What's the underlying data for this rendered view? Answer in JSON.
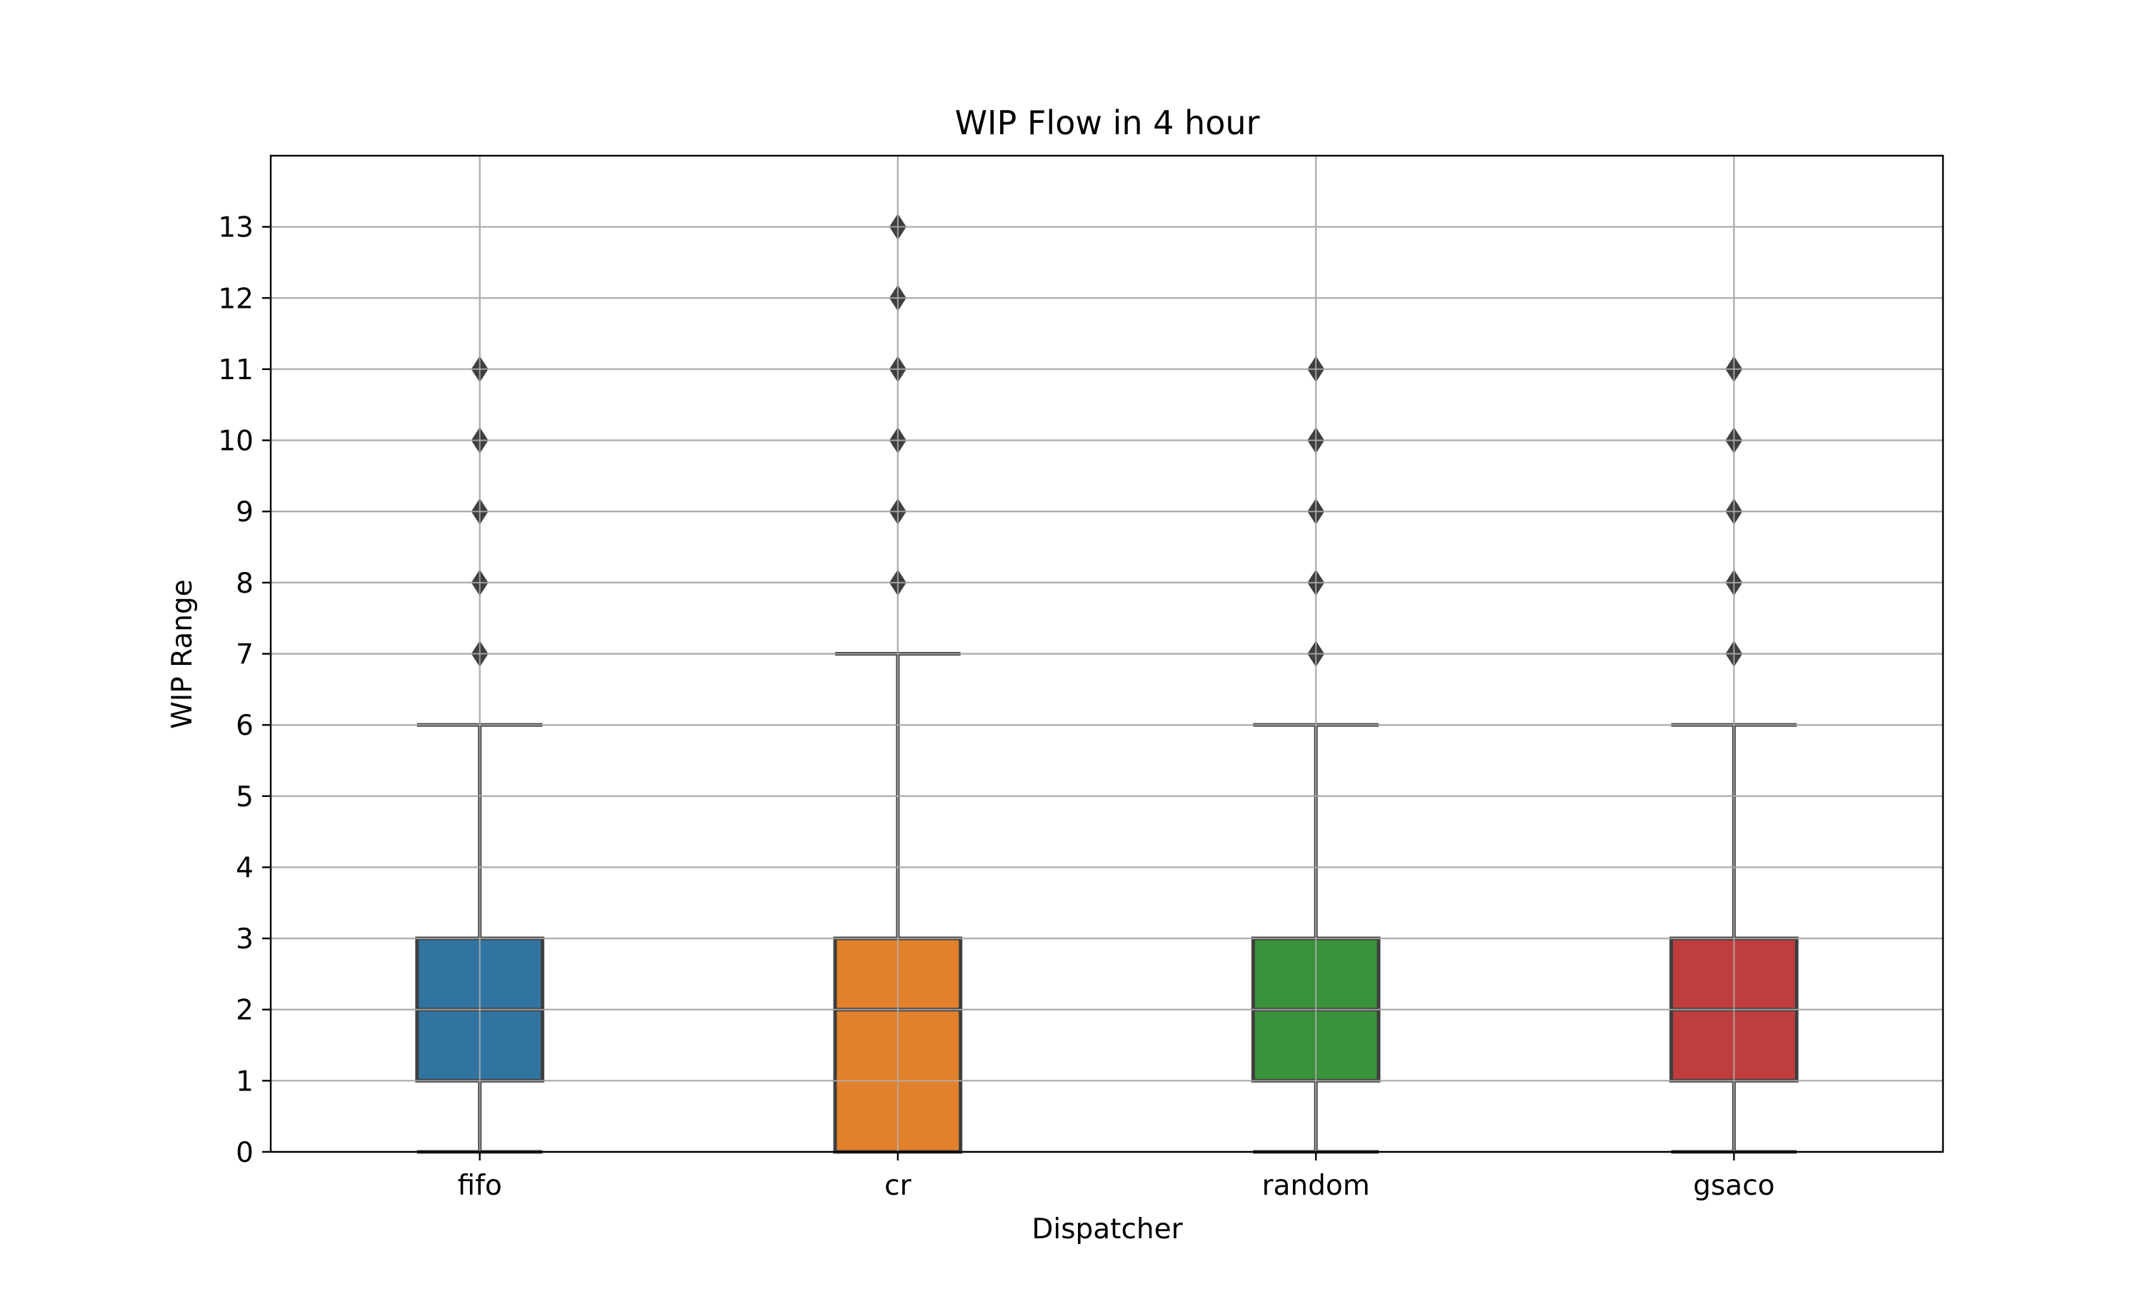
{
  "chart_data": {
    "type": "box",
    "title": "WIP Flow in 4 hour",
    "xlabel": "Dispatcher",
    "ylabel": "WIP Range",
    "categories": [
      "fifo",
      "cr",
      "random",
      "gsaco"
    ],
    "ylim": [
      0,
      14
    ],
    "yticks": [
      0,
      1,
      2,
      3,
      4,
      5,
      6,
      7,
      8,
      9,
      10,
      11,
      12,
      13
    ],
    "grid": true,
    "boxes": [
      {
        "category": "fifo",
        "whisker_low": 0,
        "q1": 1,
        "median": 2,
        "q3": 3,
        "whisker_high": 6,
        "outliers": [
          7,
          8,
          9,
          10,
          11
        ],
        "color": "#3274a1"
      },
      {
        "category": "cr",
        "whisker_low": 0,
        "q1": 0,
        "median": 2,
        "q3": 3,
        "whisker_high": 7,
        "outliers": [
          8,
          9,
          10,
          11,
          12,
          13
        ],
        "color": "#e1812c"
      },
      {
        "category": "random",
        "whisker_low": 0,
        "q1": 1,
        "median": 2,
        "q3": 3,
        "whisker_high": 6,
        "outliers": [
          7,
          8,
          9,
          10,
          11
        ],
        "color": "#3a923a"
      },
      {
        "category": "gsaco",
        "whisker_low": 0,
        "q1": 1,
        "median": 2,
        "q3": 3,
        "whisker_high": 6,
        "outliers": [
          7,
          8,
          9,
          10,
          11
        ],
        "color": "#c03d3e"
      }
    ]
  }
}
